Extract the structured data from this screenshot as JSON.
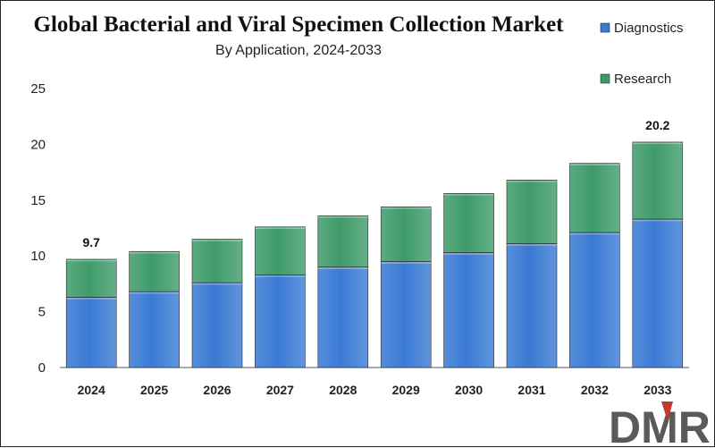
{
  "chart_data": {
    "type": "bar",
    "stacked": true,
    "title": "Global Bacterial and Viral Specimen Collection Market",
    "subtitle": "By Application, 2024-2033",
    "categories": [
      "2024",
      "2025",
      "2026",
      "2027",
      "2028",
      "2029",
      "2030",
      "2031",
      "2032",
      "2033"
    ],
    "series": [
      {
        "name": "Diagnostics",
        "color": "#3a7ad4",
        "values": [
          6.3,
          6.8,
          7.6,
          8.3,
          9.0,
          9.5,
          10.3,
          11.1,
          12.1,
          13.3
        ]
      },
      {
        "name": "Research",
        "color": "#3f9b6a",
        "values": [
          3.4,
          3.6,
          3.9,
          4.3,
          4.6,
          4.9,
          5.3,
          5.7,
          6.2,
          6.9
        ]
      }
    ],
    "ylim": [
      0,
      25
    ],
    "yticks": [
      "0",
      "5",
      "10",
      "15",
      "20",
      "25"
    ],
    "data_labels": [
      {
        "category": "2024",
        "text": "9.7"
      },
      {
        "category": "2033",
        "text": "20.2"
      }
    ],
    "legend_position": "top-right",
    "grid": false
  },
  "logo": {
    "text": "DMR",
    "accent_color": "#c0392b"
  }
}
